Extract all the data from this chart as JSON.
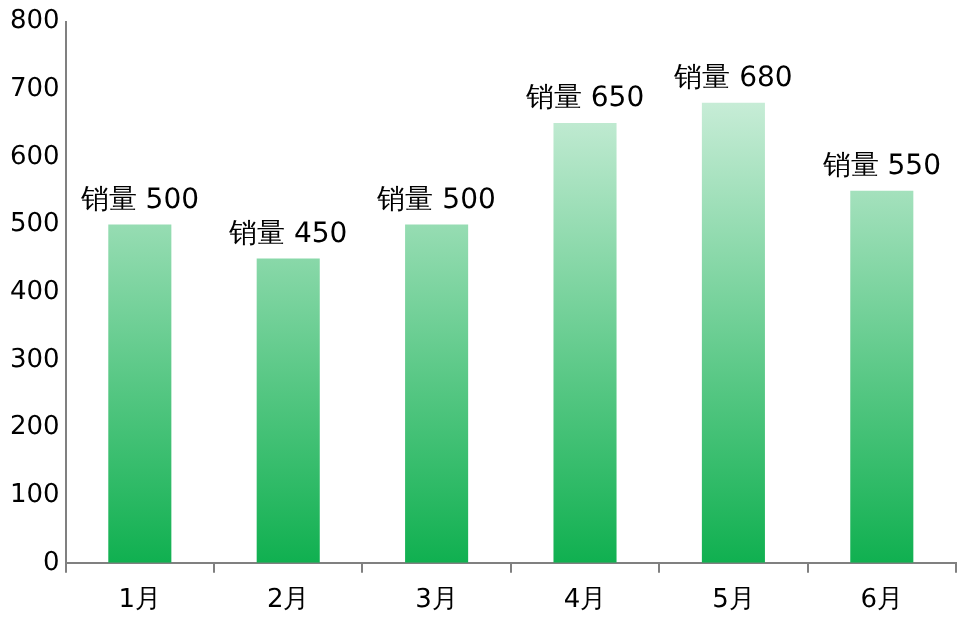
{
  "chart_data": {
    "type": "bar",
    "categories": [
      "1月",
      "2月",
      "3月",
      "4月",
      "5月",
      "6月"
    ],
    "values": [
      500,
      450,
      500,
      650,
      680,
      550
    ],
    "value_labels": [
      "销量 500",
      "销量 450",
      "销量 500",
      "销量 650",
      "销量 680",
      "销量 550"
    ],
    "color": "#10b050",
    "ylim": [
      0,
      800
    ],
    "yticks": [
      0,
      100,
      200,
      300,
      400,
      500,
      600,
      700,
      800
    ],
    "grid": false,
    "legend": false
  }
}
